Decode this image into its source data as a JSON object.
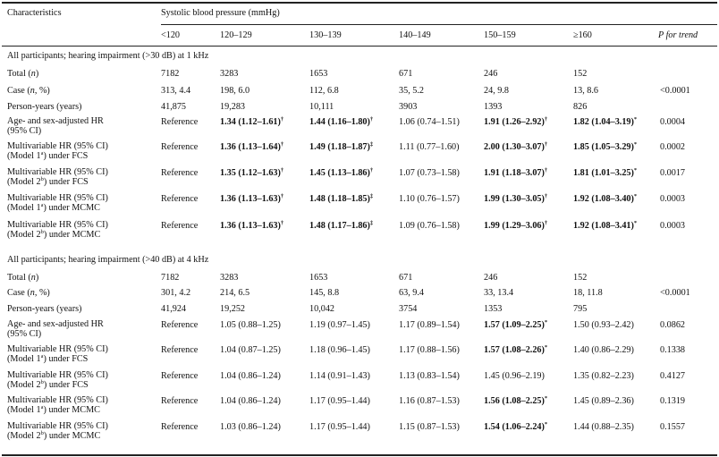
{
  "header": {
    "characteristics": "Characteristics",
    "sbp": "Systolic blood pressure (mmHg)",
    "ptrend": "P for trend",
    "categories": [
      "<120",
      "120–129",
      "130–139",
      "140–149",
      "150–159",
      "≥160"
    ]
  },
  "sections": [
    {
      "title": "All participants; hearing impairment (>30 dB) at 1 kHz",
      "rows": [
        {
          "label": [
            "Total (",
            "n",
            ")"
          ],
          "cells": [
            [
              "7182",
              ""
            ],
            [
              "3283",
              ""
            ],
            [
              "1653",
              ""
            ],
            [
              "671",
              ""
            ],
            [
              "246",
              ""
            ],
            [
              "152",
              ""
            ]
          ],
          "p": ""
        },
        {
          "label": [
            "Case (",
            "n",
            ", %)"
          ],
          "cells": [
            [
              "313, 4.4",
              ""
            ],
            [
              "198, 6.0",
              ""
            ],
            [
              "112, 6.8",
              ""
            ],
            [
              "35, 5.2",
              ""
            ],
            [
              "24, 9.8",
              ""
            ],
            [
              "13, 8.6",
              ""
            ]
          ],
          "p": "<0.0001"
        },
        {
          "label": [
            "Person-years (years)"
          ],
          "cells": [
            [
              "41,875",
              ""
            ],
            [
              "19,283",
              ""
            ],
            [
              "10,111",
              ""
            ],
            [
              "3903",
              ""
            ],
            [
              "1393",
              ""
            ],
            [
              "826",
              ""
            ]
          ],
          "p": ""
        },
        {
          "label": [
            "Age- and sex-adjusted HR",
            "(95% CI)"
          ],
          "cells": [
            [
              "Reference",
              ""
            ],
            [
              "1.34 (1.12–1.61)",
              "†"
            ],
            [
              "1.44 (1.16–1.80)",
              "†"
            ],
            [
              "1.06 (0.74–1.51)",
              ""
            ],
            [
              "1.91 (1.26–2.92)",
              "†"
            ],
            [
              "1.82 (1.04–3.19)",
              "*"
            ]
          ],
          "bold": [
            false,
            true,
            true,
            false,
            true,
            true
          ],
          "p": "0.0004"
        },
        {
          "label": [
            "Multivariable HR (95% CI)",
            "(Model 1",
            "a",
            ") under FCS"
          ],
          "cells": [
            [
              "Reference",
              ""
            ],
            [
              "1.36 (1.13–1.64)",
              "†"
            ],
            [
              "1.49 (1.18–1.87)",
              "‡"
            ],
            [
              "1.11 (0.77–1.60)",
              ""
            ],
            [
              "2.00 (1.30–3.07)",
              "†"
            ],
            [
              "1.85 (1.05–3.29)",
              "*"
            ]
          ],
          "bold": [
            false,
            true,
            true,
            false,
            true,
            true
          ],
          "p": "0.0002"
        },
        {
          "label": [
            "Multivariable HR (95% CI)",
            "(Model 2",
            "b",
            ") under FCS"
          ],
          "cells": [
            [
              "Reference",
              ""
            ],
            [
              "1.35 (1.12–1.63)",
              "†"
            ],
            [
              "1.45 (1.13–1.86)",
              "†"
            ],
            [
              "1.07 (0.73–1.58)",
              ""
            ],
            [
              "1.91 (1.18–3.07)",
              "†"
            ],
            [
              "1.81 (1.01–3.25)",
              "*"
            ]
          ],
          "bold": [
            false,
            true,
            true,
            false,
            true,
            true
          ],
          "p": "0.0017"
        },
        {
          "label": [
            "Multivariable HR (95% CI)",
            "(Model 1",
            "a",
            ") under MCMC"
          ],
          "cells": [
            [
              "Reference",
              ""
            ],
            [
              "1.36 (1.13–1.63)",
              "†"
            ],
            [
              "1.48 (1.18–1.85)",
              "‡"
            ],
            [
              "1.10 (0.76–1.57)",
              ""
            ],
            [
              "1.99 (1.30–3.05)",
              "†"
            ],
            [
              "1.92 (1.08–3.40)",
              "*"
            ]
          ],
          "bold": [
            false,
            true,
            true,
            false,
            true,
            true
          ],
          "p": "0.0003"
        },
        {
          "label": [
            "Multivariable HR (95% CI)",
            "(Model 2",
            "b",
            ") under MCMC"
          ],
          "cells": [
            [
              "Reference",
              ""
            ],
            [
              "1.36 (1.13–1.63)",
              "†"
            ],
            [
              "1.48 (1.17–1.86)",
              "‡"
            ],
            [
              "1.09 (0.76–1.58)",
              ""
            ],
            [
              "1.99 (1.29–3.06)",
              "†"
            ],
            [
              "1.92 (1.08–3.41)",
              "*"
            ]
          ],
          "bold": [
            false,
            true,
            true,
            false,
            true,
            true
          ],
          "p": "0.0003"
        }
      ]
    },
    {
      "title": "All participants; hearing impairment (>40 dB) at 4 kHz",
      "rows": [
        {
          "label": [
            "Total (",
            "n",
            ")"
          ],
          "cells": [
            [
              "7182",
              ""
            ],
            [
              "3283",
              ""
            ],
            [
              "1653",
              ""
            ],
            [
              "671",
              ""
            ],
            [
              "246",
              ""
            ],
            [
              "152",
              ""
            ]
          ],
          "p": ""
        },
        {
          "label": [
            "Case (",
            "n",
            ", %)"
          ],
          "cells": [
            [
              "301, 4.2",
              ""
            ],
            [
              "214, 6.5",
              ""
            ],
            [
              "145, 8.8",
              ""
            ],
            [
              "63, 9.4",
              ""
            ],
            [
              "33, 13.4",
              ""
            ],
            [
              "18, 11.8",
              ""
            ]
          ],
          "p": "<0.0001"
        },
        {
          "label": [
            "Person-years (years)"
          ],
          "cells": [
            [
              "41,924",
              ""
            ],
            [
              "19,252",
              ""
            ],
            [
              "10,042",
              ""
            ],
            [
              "3754",
              ""
            ],
            [
              "1353",
              ""
            ],
            [
              "795",
              ""
            ]
          ],
          "p": ""
        },
        {
          "label": [
            "Age- and sex-adjusted HR",
            "(95% CI)"
          ],
          "cells": [
            [
              "Reference",
              ""
            ],
            [
              "1.05 (0.88–1.25)",
              ""
            ],
            [
              "1.19 (0.97–1.45)",
              ""
            ],
            [
              "1.17 (0.89–1.54)",
              ""
            ],
            [
              "1.57 (1.09–2.25)",
              "*"
            ],
            [
              "1.50 (0.93–2.42)",
              ""
            ]
          ],
          "bold": [
            false,
            false,
            false,
            false,
            true,
            false
          ],
          "p": "0.0862"
        },
        {
          "label": [
            "Multivariable HR (95% CI)",
            "(Model 1",
            "a",
            ") under FCS"
          ],
          "cells": [
            [
              "Reference",
              ""
            ],
            [
              "1.04 (0.87–1.25)",
              ""
            ],
            [
              "1.18 (0.96–1.45)",
              ""
            ],
            [
              "1.17 (0.88–1.56)",
              ""
            ],
            [
              "1.57 (1.08–2.26)",
              "*"
            ],
            [
              "1.40 (0.86–2.29)",
              ""
            ]
          ],
          "bold": [
            false,
            false,
            false,
            false,
            true,
            false
          ],
          "p": "0.1338"
        },
        {
          "label": [
            "Multivariable HR (95% CI)",
            "(Model 2",
            "b",
            ") under FCS"
          ],
          "cells": [
            [
              "Reference",
              ""
            ],
            [
              "1.04 (0.86–1.24)",
              ""
            ],
            [
              "1.14 (0.91–1.43)",
              ""
            ],
            [
              "1.13 (0.83–1.54)",
              ""
            ],
            [
              "1.45 (0.96–2.19)",
              ""
            ],
            [
              "1.35 (0.82–2.23)",
              ""
            ]
          ],
          "bold": [
            false,
            false,
            false,
            false,
            false,
            false
          ],
          "p": "0.4127"
        },
        {
          "label": [
            "Multivariable HR (95% CI)",
            "(Model 1",
            "a",
            ") under MCMC"
          ],
          "cells": [
            [
              "Reference",
              ""
            ],
            [
              "1.04 (0.86–1.24)",
              ""
            ],
            [
              "1.17 (0.95–1.44)",
              ""
            ],
            [
              "1.16 (0.87–1.53)",
              ""
            ],
            [
              "1.56 (1.08–2.25)",
              "*"
            ],
            [
              "1.45 (0.89–2.36)",
              ""
            ]
          ],
          "bold": [
            false,
            false,
            false,
            false,
            true,
            false
          ],
          "p": "0.1319"
        },
        {
          "label": [
            "Multivariable HR (95% CI)",
            "(Model 2",
            "b",
            ") under MCMC"
          ],
          "cells": [
            [
              "Reference",
              ""
            ],
            [
              "1.03 (0.86–1.24)",
              ""
            ],
            [
              "1.17 (0.95–1.44)",
              ""
            ],
            [
              "1.15 (0.87–1.53)",
              ""
            ],
            [
              "1.54 (1.06–2.24)",
              "*"
            ],
            [
              "1.44 (0.88–2.35)",
              ""
            ]
          ],
          "bold": [
            false,
            false,
            false,
            false,
            true,
            false
          ],
          "p": "0.1557"
        }
      ]
    }
  ]
}
